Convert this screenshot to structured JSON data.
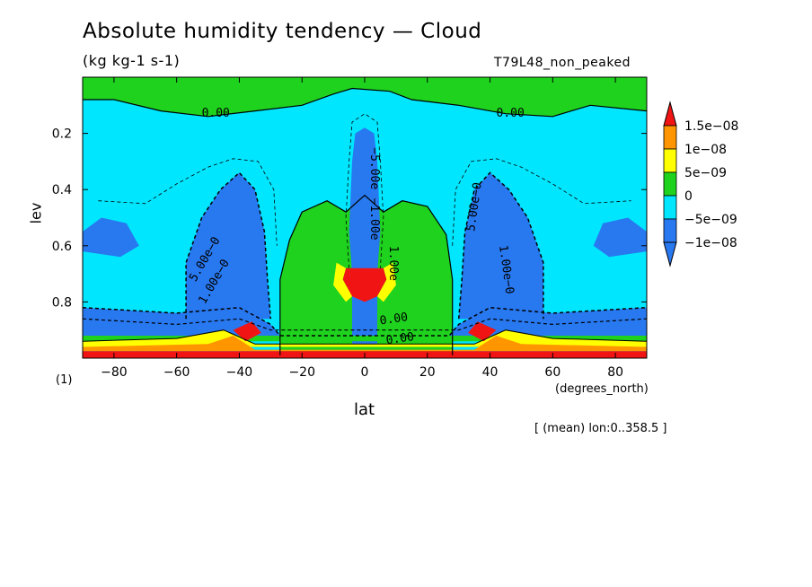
{
  "chart_data": {
    "type": "heatmap",
    "subtype": "filled-contour",
    "title": "Absolute humidity tendency — Cloud",
    "units": "(kg kg-1 s-1)",
    "run_name": "T79L48_non_peaked",
    "xlabel": "lat",
    "xunits": "(degrees_north)",
    "ylabel": "lev",
    "panel_id": "(1)",
    "mean_note": "[ (mean) lon:0..358.5 ]",
    "x_range": [
      -90,
      90
    ],
    "y_range": [
      1.0,
      0.0
    ],
    "x_ticks": [
      -80,
      -60,
      -40,
      -20,
      0,
      20,
      40,
      60,
      80
    ],
    "x_tick_labels": [
      "−80",
      "−60",
      "−40",
      "−20",
      "0",
      "20",
      "40",
      "60",
      "80"
    ],
    "y_ticks": [
      0.2,
      0.4,
      0.6,
      0.8
    ],
    "y_tick_labels": [
      "0.2",
      "0.4",
      "0.6",
      "0.8"
    ],
    "levels": [
      -1e-08,
      -5e-09,
      0,
      5e-09,
      1e-08,
      1.5e-08
    ],
    "level_labels": [
      "1.5e−08",
      "1e−08",
      "5e−09",
      "0",
      "−5e−09",
      "−1e−08"
    ],
    "colors": {
      "lt_-1e-8": "#2878f0",
      "-1e-8_to_-5e-9": "#2878f0",
      "-5e-9_to_0": "#00e6ff",
      "0_to_5e-9": "#1ed21e",
      "5e-9_to_1e-8": "#ffff00",
      "1e-8_to_1.5e-8": "#ff9600",
      "gt_1.5e-8": "#f01414"
    },
    "contour_labels": [
      "0.00",
      "0.00",
      "5.00e−0",
      "1.00e−0",
      "5.00e−0",
      "1.00e−0",
      "−5.00e",
      "−1.00e",
      "0.00",
      "0.00",
      "1.00e"
    ]
  }
}
